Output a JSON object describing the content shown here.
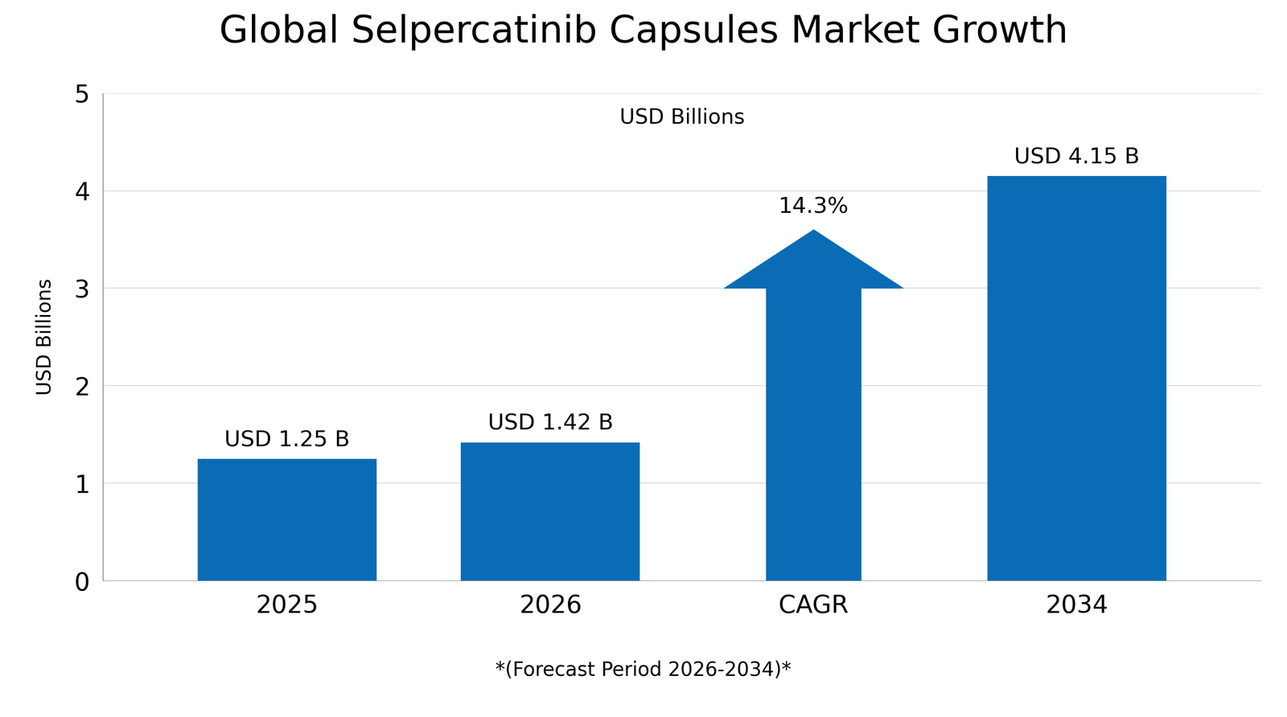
{
  "chart_data": {
    "type": "bar",
    "title": "Global Selpercatinib Capsules Market Growth",
    "subtitle": "USD Billions",
    "y_label": "USD Billions",
    "footnote": "*(Forecast Period 2026-2034)*",
    "categories": [
      "2025",
      "2026",
      "CAGR",
      "2034"
    ],
    "values": [
      1.25,
      1.42,
      null,
      4.15
    ],
    "value_labels": [
      "USD 1.25 B",
      "USD 1.42 B",
      null,
      "USD 4.15 B"
    ],
    "annotations": [
      {
        "category": "CAGR",
        "text": "14.3%"
      }
    ],
    "color": "#0a6cb4",
    "ylim": [
      0,
      5
    ],
    "yticks": [
      0,
      1,
      2,
      3,
      4,
      5
    ],
    "grid": true,
    "data_labels": true
  }
}
